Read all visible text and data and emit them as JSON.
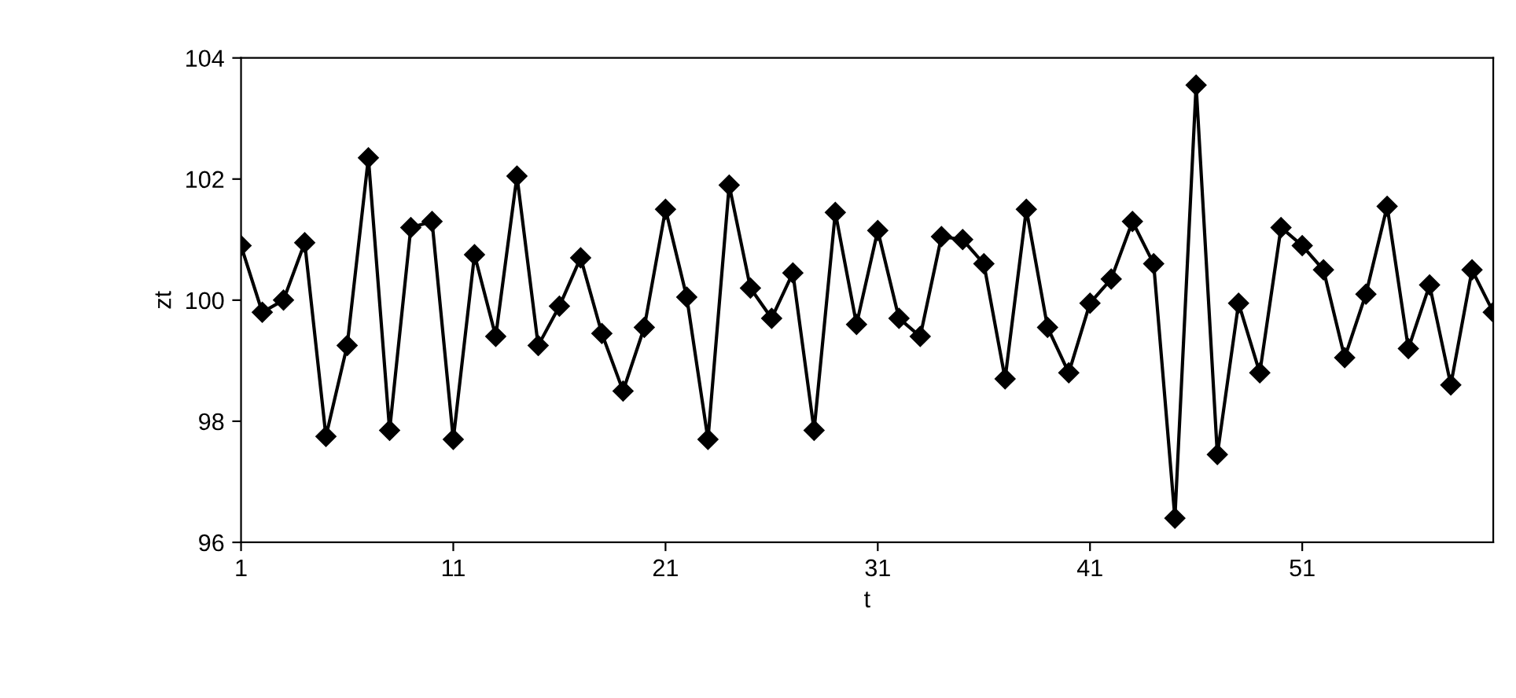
{
  "chart_data": {
    "type": "line",
    "xlabel": "t",
    "ylabel": "zt",
    "x": [
      1,
      2,
      3,
      4,
      5,
      6,
      7,
      8,
      9,
      10,
      11,
      12,
      13,
      14,
      15,
      16,
      17,
      18,
      19,
      20,
      21,
      22,
      23,
      24,
      25,
      26,
      27,
      28,
      29,
      30,
      31,
      32,
      33,
      34,
      35,
      36,
      37,
      38,
      39,
      40,
      41,
      42,
      43,
      44,
      45,
      46,
      47,
      48,
      49,
      50,
      51,
      52,
      53,
      54,
      55,
      56,
      57,
      58,
      59,
      60
    ],
    "series": [
      {
        "color": "#000000",
        "values": [
          100.9,
          99.8,
          100.0,
          100.95,
          97.75,
          99.25,
          102.35,
          97.85,
          101.2,
          101.3,
          97.7,
          100.75,
          99.4,
          102.05,
          99.25,
          99.9,
          100.7,
          99.45,
          98.5,
          99.55,
          101.5,
          100.05,
          97.7,
          101.9,
          100.2,
          99.7,
          100.45,
          97.85,
          101.45,
          99.6,
          101.15,
          99.7,
          99.4,
          101.05,
          101.0,
          100.6,
          98.7,
          101.5,
          99.55,
          98.8,
          99.95,
          100.35,
          101.3,
          100.6,
          96.4,
          103.55,
          97.45,
          99.95,
          98.8,
          101.2,
          100.9,
          100.5,
          99.05,
          100.1,
          101.55,
          99.2,
          100.25,
          98.6,
          100.5,
          99.8
        ]
      }
    ],
    "xlim": [
      1,
      60
    ],
    "xticks": [
      1,
      11,
      21,
      31,
      41,
      51
    ],
    "ylim": [
      96,
      104
    ],
    "yticks": [
      96,
      98,
      100,
      102,
      104
    ],
    "marker": "diamond",
    "line_style": "solid",
    "grid": false
  }
}
